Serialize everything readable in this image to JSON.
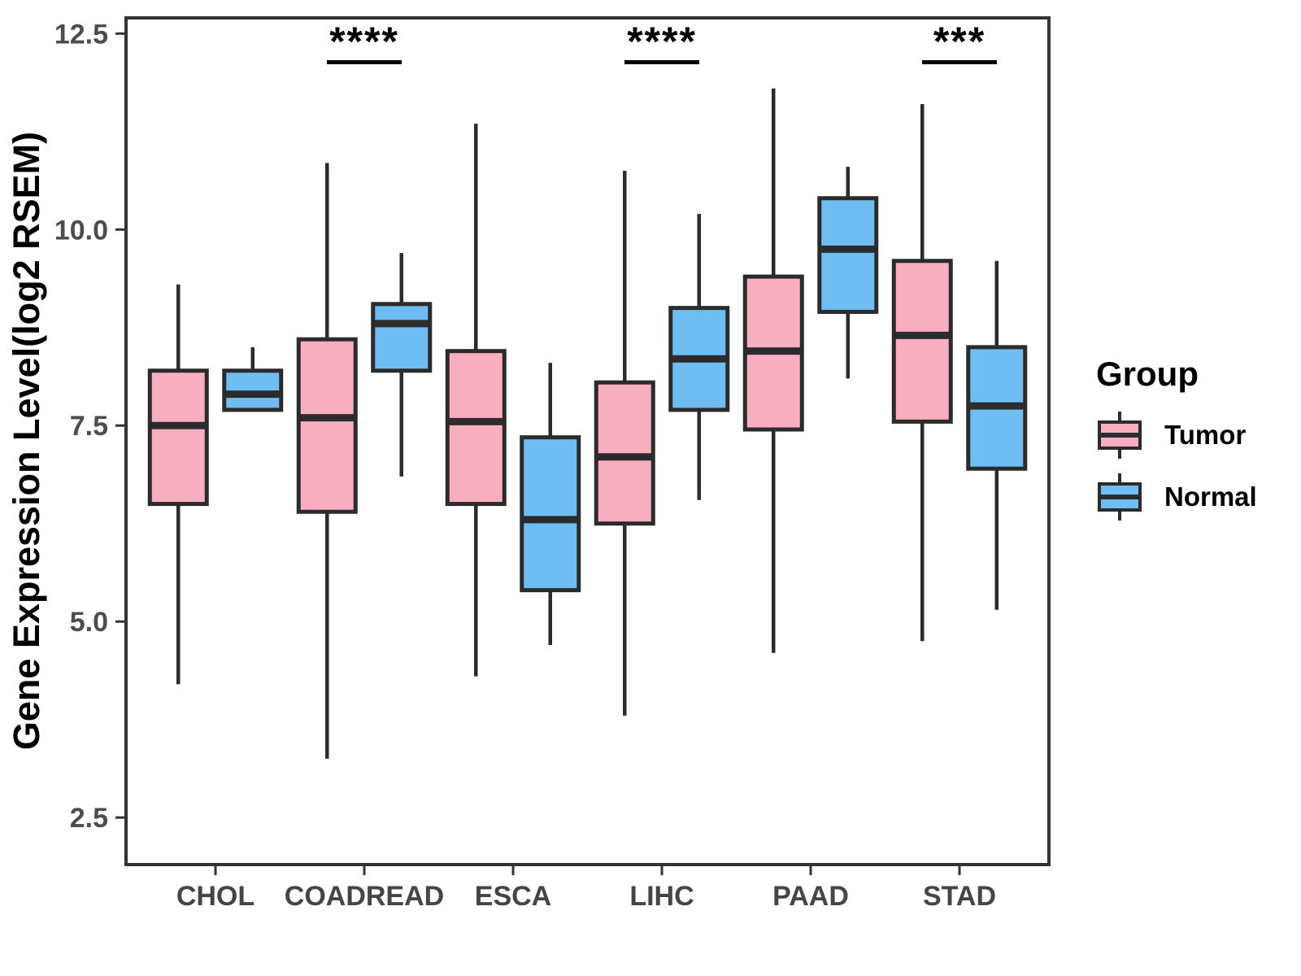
{
  "figure": {
    "title": "",
    "description_visible": false
  },
  "chart_data": {
    "type": "boxplot",
    "title": "",
    "xlabel": "",
    "ylabel": "Gene Expression Level(log2 RSEM)",
    "categories": [
      "CHOL",
      "COADREAD",
      "ESCA",
      "LIHC",
      "PAAD",
      "STAD"
    ],
    "y_ticks": [
      2.5,
      5.0,
      7.5,
      10.0,
      12.5
    ],
    "y_tick_labels": [
      "2.5",
      "5.0",
      "7.5",
      "10.0",
      "12.5"
    ],
    "ylim": [
      1.9,
      12.7
    ],
    "grid": false,
    "panel_border": true,
    "colors": {
      "tumor_fill": "#FAAFC0",
      "normal_fill": "#6EBEF4",
      "box_stroke": "#2b2b2b",
      "annotation": "#000000",
      "axis_text": "#4d4d4d"
    },
    "legend": {
      "title": "Group",
      "position": "right",
      "entries": [
        {
          "label": "Tumor",
          "color": "#FAAFC0"
        },
        {
          "label": "Normal",
          "color": "#6EBEF4"
        }
      ]
    },
    "series": [
      {
        "name": "Tumor",
        "color": "#FAAFC0",
        "five_number_summaries_order": [
          "min",
          "q1",
          "median",
          "q3",
          "max"
        ],
        "values": [
          [
            4.2,
            6.5,
            7.5,
            8.2,
            9.3
          ],
          [
            3.25,
            6.4,
            7.6,
            8.6,
            10.85
          ],
          [
            4.3,
            6.5,
            7.55,
            8.45,
            11.35
          ],
          [
            3.8,
            6.25,
            7.1,
            8.05,
            10.75
          ],
          [
            4.6,
            7.45,
            8.45,
            9.4,
            11.8
          ],
          [
            4.75,
            7.55,
            8.65,
            9.6,
            11.6
          ]
        ]
      },
      {
        "name": "Normal",
        "color": "#6EBEF4",
        "five_number_summaries_order": [
          "min",
          "q1",
          "median",
          "q3",
          "max"
        ],
        "values": [
          [
            7.7,
            7.7,
            7.9,
            8.2,
            8.5
          ],
          [
            6.85,
            8.2,
            8.8,
            9.05,
            9.7
          ],
          [
            4.7,
            5.4,
            6.3,
            7.35,
            8.3
          ],
          [
            6.55,
            7.7,
            8.35,
            9.0,
            10.2
          ],
          [
            8.1,
            8.95,
            9.75,
            10.4,
            10.8
          ],
          [
            5.15,
            6.95,
            7.75,
            8.5,
            9.6
          ]
        ]
      }
    ],
    "annotations": [
      {
        "category": "COADREAD",
        "text": "****"
      },
      {
        "category": "LIHC",
        "text": "****"
      },
      {
        "category": "STAD",
        "text": "***"
      }
    ]
  }
}
